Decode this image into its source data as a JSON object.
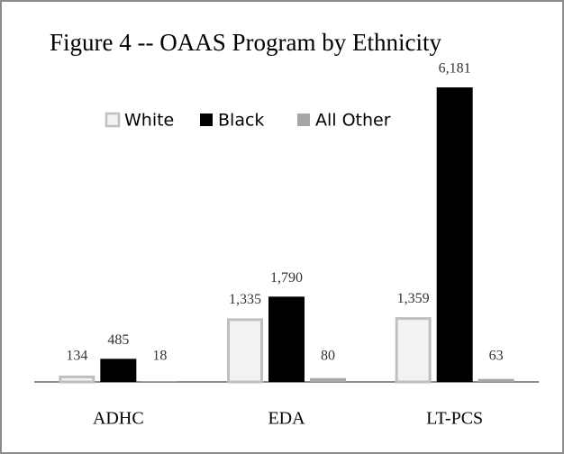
{
  "chart_data": {
    "type": "bar",
    "title": "Figure 4 --  OAAS Program by Ethnicity",
    "categories": [
      "ADHC",
      "EDA",
      "LT-PCS"
    ],
    "series": [
      {
        "name": "White",
        "color": "#f2f2f2",
        "stroke": "#bfbfbf",
        "values": [
          134,
          1335,
          1359
        ],
        "value_labels": [
          "134",
          "1,335",
          "1,359"
        ]
      },
      {
        "name": "Black",
        "color": "#000000",
        "values": [
          485,
          1790,
          6181
        ],
        "value_labels": [
          "485",
          "1,790",
          "6,181"
        ]
      },
      {
        "name": "All Other",
        "color": "#a6a6a6",
        "values": [
          18,
          80,
          63
        ],
        "value_labels": [
          "18",
          "80",
          "63"
        ]
      }
    ],
    "legend": "top"
  }
}
